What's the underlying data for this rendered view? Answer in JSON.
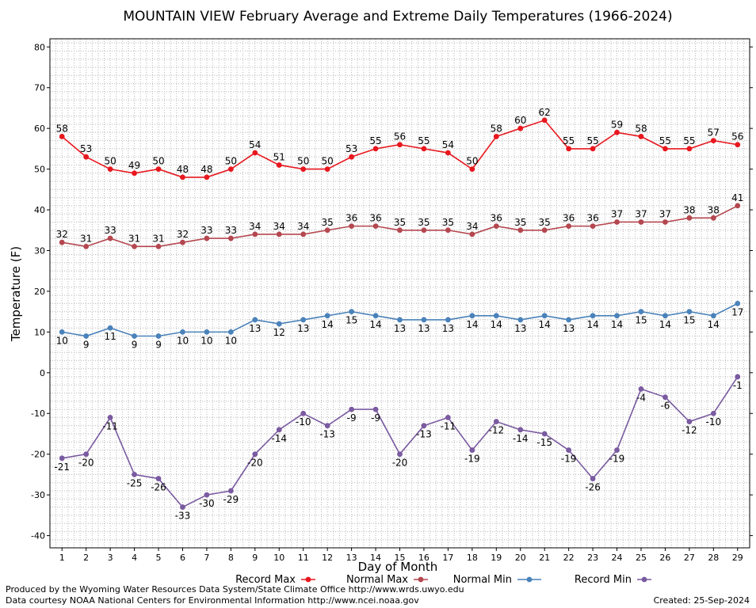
{
  "chart_data": {
    "type": "line",
    "title": "MOUNTAIN VIEW February Average and Extreme Daily Temperatures (1966-2024)",
    "xlabel": "Day of Month",
    "ylabel": "Temperature (F)",
    "x": [
      1,
      2,
      3,
      4,
      5,
      6,
      7,
      8,
      9,
      10,
      11,
      12,
      13,
      14,
      15,
      16,
      17,
      18,
      19,
      20,
      21,
      22,
      23,
      24,
      25,
      26,
      27,
      28,
      29
    ],
    "xlim": [
      0.5,
      29.5
    ],
    "ylim": [
      -43,
      82
    ],
    "yticks": [
      -40,
      -30,
      -20,
      -10,
      0,
      10,
      20,
      30,
      40,
      50,
      60,
      70,
      80
    ],
    "grid": true,
    "legend_position": "bottom",
    "series": [
      {
        "name": "Record Max",
        "color": "#e8171e",
        "values": [
          58,
          53,
          50,
          49,
          50,
          48,
          48,
          50,
          54,
          51,
          50,
          50,
          53,
          55,
          56,
          55,
          54,
          50,
          58,
          60,
          62,
          55,
          55,
          59,
          58,
          55,
          55,
          57,
          56
        ]
      },
      {
        "name": "Normal Max",
        "color": "#b4474f",
        "values": [
          32,
          31,
          33,
          31,
          31,
          32,
          33,
          33,
          34,
          34,
          34,
          35,
          36,
          36,
          35,
          35,
          35,
          34,
          36,
          35,
          35,
          36,
          36,
          37,
          37,
          37,
          38,
          38,
          41
        ]
      },
      {
        "name": "Normal Min",
        "color": "#4a82ba",
        "values": [
          10,
          9,
          11,
          9,
          9,
          10,
          10,
          10,
          13,
          12,
          13,
          14,
          15,
          14,
          13,
          13,
          13,
          14,
          14,
          13,
          14,
          13,
          14,
          14,
          15,
          14,
          15,
          14,
          17
        ]
      },
      {
        "name": "Record Min",
        "color": "#7a5aa0",
        "values": [
          -21,
          -20,
          -11,
          -25,
          -26,
          -33,
          -30,
          -29,
          -20,
          -14,
          -10,
          -13,
          -9,
          -9,
          -20,
          -13,
          -11,
          -19,
          -12,
          -14,
          -15,
          -19,
          -26,
          -19,
          -4,
          -6,
          -12,
          -10,
          -1
        ]
      }
    ]
  },
  "footer": {
    "produced_by": "Produced by the Wyoming Water Resources Data System/State Climate Office http://www.wrds.uwyo.edu",
    "data_courtesy": "Data courtesy NOAA National Centers for Environmental Information http://www.ncei.noaa.gov",
    "created": "Created:  25-Sep-2024"
  }
}
